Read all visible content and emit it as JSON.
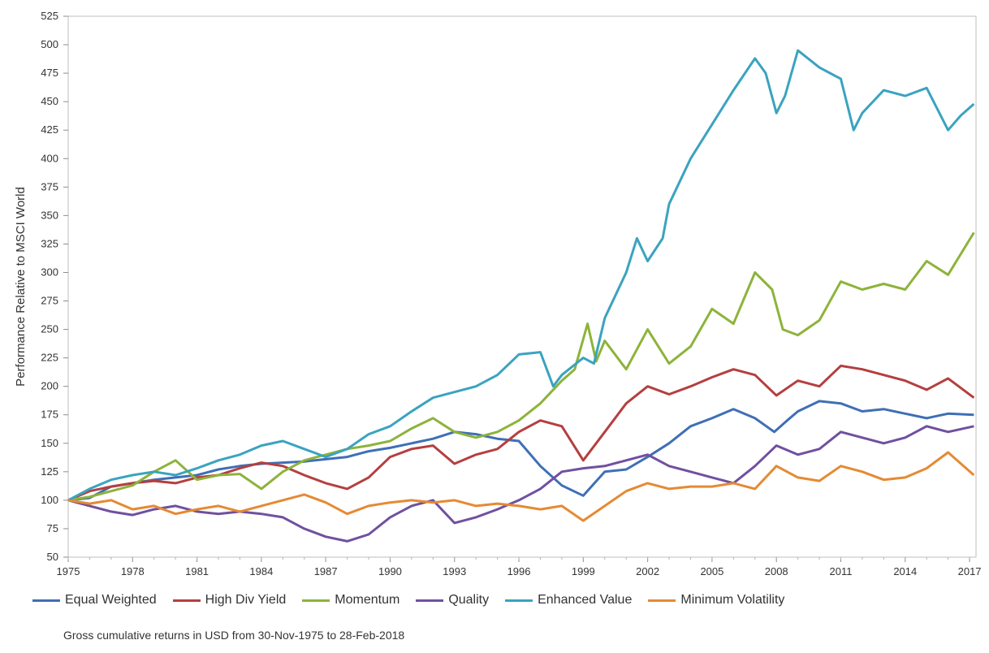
{
  "chart_data": {
    "type": "line",
    "ylabel": "Performance Relative to MSCI World",
    "xlabel": "",
    "xlim": [
      1975,
      2017.3
    ],
    "ylim": [
      50,
      525
    ],
    "y_ticks": [
      "50",
      "75",
      "100",
      "125",
      "150",
      "175",
      "200",
      "225",
      "250",
      "275",
      "300",
      "325",
      "350",
      "375",
      "400",
      "425",
      "450",
      "475",
      "500",
      "525"
    ],
    "x_ticks": [
      "1975",
      "1978",
      "1981",
      "1984",
      "1987",
      "1990",
      "1993",
      "1996",
      "1999",
      "2002",
      "2005",
      "2008",
      "2011",
      "2014",
      "2017"
    ],
    "grid": false,
    "legend_position": "bottom",
    "series": [
      {
        "name": "Equal Weighted",
        "color": "#3f6fb5",
        "points": [
          [
            1975,
            100
          ],
          [
            1976,
            102
          ],
          [
            1977,
            112
          ],
          [
            1978,
            115
          ],
          [
            1979,
            118
          ],
          [
            1980,
            120
          ],
          [
            1981,
            122
          ],
          [
            1982,
            127
          ],
          [
            1983,
            130
          ],
          [
            1984,
            132
          ],
          [
            1985,
            133
          ],
          [
            1986,
            134
          ],
          [
            1987,
            136
          ],
          [
            1988,
            138
          ],
          [
            1989,
            143
          ],
          [
            1990,
            146
          ],
          [
            1991,
            150
          ],
          [
            1992,
            154
          ],
          [
            1993,
            160
          ],
          [
            1994,
            158
          ],
          [
            1995,
            154
          ],
          [
            1996,
            152
          ],
          [
            1997,
            130
          ],
          [
            1998,
            113
          ],
          [
            1999,
            104
          ],
          [
            2000,
            125
          ],
          [
            2001,
            127
          ],
          [
            2002,
            138
          ],
          [
            2003,
            150
          ],
          [
            2004,
            165
          ],
          [
            2005,
            172
          ],
          [
            2006,
            180
          ],
          [
            2007,
            172
          ],
          [
            2007.9,
            160
          ],
          [
            2008.5,
            170
          ],
          [
            2009,
            178
          ],
          [
            2010,
            187
          ],
          [
            2011,
            185
          ],
          [
            2012,
            178
          ],
          [
            2013,
            180
          ],
          [
            2014,
            176
          ],
          [
            2015,
            172
          ],
          [
            2016,
            176
          ],
          [
            2017.2,
            175
          ]
        ]
      },
      {
        "name": "High Div Yield",
        "color": "#b53f3f",
        "points": [
          [
            1975,
            100
          ],
          [
            1976,
            108
          ],
          [
            1977,
            112
          ],
          [
            1978,
            115
          ],
          [
            1979,
            117
          ],
          [
            1980,
            115
          ],
          [
            1981,
            120
          ],
          [
            1982,
            122
          ],
          [
            1983,
            128
          ],
          [
            1984,
            133
          ],
          [
            1985,
            130
          ],
          [
            1986,
            122
          ],
          [
            1987,
            115
          ],
          [
            1988,
            110
          ],
          [
            1989,
            120
          ],
          [
            1990,
            138
          ],
          [
            1991,
            145
          ],
          [
            1992,
            148
          ],
          [
            1993,
            132
          ],
          [
            1994,
            140
          ],
          [
            1995,
            145
          ],
          [
            1996,
            160
          ],
          [
            1997,
            170
          ],
          [
            1998,
            165
          ],
          [
            1999,
            135
          ],
          [
            2000,
            160
          ],
          [
            2001,
            185
          ],
          [
            2002,
            200
          ],
          [
            2003,
            193
          ],
          [
            2004,
            200
          ],
          [
            2005,
            208
          ],
          [
            2006,
            215
          ],
          [
            2007,
            210
          ],
          [
            2008,
            192
          ],
          [
            2009,
            205
          ],
          [
            2010,
            200
          ],
          [
            2011,
            218
          ],
          [
            2012,
            215
          ],
          [
            2013,
            210
          ],
          [
            2014,
            205
          ],
          [
            2015,
            197
          ],
          [
            2016,
            207
          ],
          [
            2017.2,
            190
          ]
        ]
      },
      {
        "name": "Momentum",
        "color": "#8db33a",
        "points": [
          [
            1975,
            100
          ],
          [
            1976,
            103
          ],
          [
            1977,
            108
          ],
          [
            1978,
            113
          ],
          [
            1979,
            125
          ],
          [
            1980,
            135
          ],
          [
            1981,
            118
          ],
          [
            1982,
            122
          ],
          [
            1983,
            123
          ],
          [
            1984,
            110
          ],
          [
            1985,
            125
          ],
          [
            1986,
            135
          ],
          [
            1987,
            140
          ],
          [
            1988,
            145
          ],
          [
            1989,
            148
          ],
          [
            1990,
            152
          ],
          [
            1991,
            163
          ],
          [
            1992,
            172
          ],
          [
            1993,
            160
          ],
          [
            1994,
            155
          ],
          [
            1995,
            160
          ],
          [
            1996,
            170
          ],
          [
            1997,
            185
          ],
          [
            1998,
            205
          ],
          [
            1998.6,
            215
          ],
          [
            1999.2,
            255
          ],
          [
            1999.6,
            222
          ],
          [
            2000,
            240
          ],
          [
            2001,
            215
          ],
          [
            2002,
            250
          ],
          [
            2003,
            220
          ],
          [
            2004,
            235
          ],
          [
            2005,
            268
          ],
          [
            2006,
            255
          ],
          [
            2007,
            300
          ],
          [
            2007.8,
            285
          ],
          [
            2008.3,
            250
          ],
          [
            2009,
            245
          ],
          [
            2010,
            258
          ],
          [
            2011,
            292
          ],
          [
            2012,
            285
          ],
          [
            2013,
            290
          ],
          [
            2014,
            285
          ],
          [
            2015,
            310
          ],
          [
            2016,
            298
          ],
          [
            2017.2,
            335
          ]
        ]
      },
      {
        "name": "Quality",
        "color": "#7050a0",
        "points": [
          [
            1975,
            100
          ],
          [
            1976,
            95
          ],
          [
            1977,
            90
          ],
          [
            1978,
            87
          ],
          [
            1979,
            92
          ],
          [
            1980,
            95
          ],
          [
            1981,
            90
          ],
          [
            1982,
            88
          ],
          [
            1983,
            90
          ],
          [
            1984,
            88
          ],
          [
            1985,
            85
          ],
          [
            1986,
            75
          ],
          [
            1987,
            68
          ],
          [
            1988,
            64
          ],
          [
            1989,
            70
          ],
          [
            1990,
            85
          ],
          [
            1991,
            95
          ],
          [
            1992,
            100
          ],
          [
            1993,
            80
          ],
          [
            1994,
            85
          ],
          [
            1995,
            92
          ],
          [
            1996,
            100
          ],
          [
            1997,
            110
          ],
          [
            1998,
            125
          ],
          [
            1999,
            128
          ],
          [
            2000,
            130
          ],
          [
            2001,
            135
          ],
          [
            2002,
            140
          ],
          [
            2003,
            130
          ],
          [
            2004,
            125
          ],
          [
            2005,
            120
          ],
          [
            2006,
            115
          ],
          [
            2007,
            130
          ],
          [
            2008,
            148
          ],
          [
            2009,
            140
          ],
          [
            2010,
            145
          ],
          [
            2011,
            160
          ],
          [
            2012,
            155
          ],
          [
            2013,
            150
          ],
          [
            2014,
            155
          ],
          [
            2015,
            165
          ],
          [
            2016,
            160
          ],
          [
            2017.2,
            165
          ]
        ]
      },
      {
        "name": "Enhanced Value",
        "color": "#3aa3c0",
        "points": [
          [
            1975,
            100
          ],
          [
            1976,
            110
          ],
          [
            1977,
            118
          ],
          [
            1978,
            122
          ],
          [
            1979,
            125
          ],
          [
            1980,
            122
          ],
          [
            1981,
            128
          ],
          [
            1982,
            135
          ],
          [
            1983,
            140
          ],
          [
            1984,
            148
          ],
          [
            1985,
            152
          ],
          [
            1986,
            145
          ],
          [
            1987,
            138
          ],
          [
            1988,
            145
          ],
          [
            1989,
            158
          ],
          [
            1990,
            165
          ],
          [
            1991,
            178
          ],
          [
            1992,
            190
          ],
          [
            1993,
            195
          ],
          [
            1994,
            200
          ],
          [
            1995,
            210
          ],
          [
            1996,
            228
          ],
          [
            1997,
            230
          ],
          [
            1997.6,
            200
          ],
          [
            1998,
            210
          ],
          [
            1999,
            225
          ],
          [
            1999.5,
            220
          ],
          [
            2000,
            260
          ],
          [
            2001,
            300
          ],
          [
            2001.5,
            330
          ],
          [
            2002,
            310
          ],
          [
            2002.7,
            330
          ],
          [
            2003,
            360
          ],
          [
            2004,
            400
          ],
          [
            2005,
            430
          ],
          [
            2006,
            460
          ],
          [
            2007,
            488
          ],
          [
            2007.5,
            475
          ],
          [
            2008,
            440
          ],
          [
            2008.4,
            455
          ],
          [
            2009,
            495
          ],
          [
            2010,
            480
          ],
          [
            2011,
            470
          ],
          [
            2011.6,
            425
          ],
          [
            2012,
            440
          ],
          [
            2013,
            460
          ],
          [
            2014,
            455
          ],
          [
            2015,
            462
          ],
          [
            2016,
            425
          ],
          [
            2016.6,
            438
          ],
          [
            2017.2,
            448
          ]
        ]
      },
      {
        "name": "Minimum Volatility",
        "color": "#e58a33",
        "points": [
          [
            1975,
            100
          ],
          [
            1976,
            97
          ],
          [
            1977,
            100
          ],
          [
            1978,
            92
          ],
          [
            1979,
            95
          ],
          [
            1980,
            88
          ],
          [
            1981,
            92
          ],
          [
            1982,
            95
          ],
          [
            1983,
            90
          ],
          [
            1984,
            95
          ],
          [
            1985,
            100
          ],
          [
            1986,
            105
          ],
          [
            1987,
            98
          ],
          [
            1988,
            88
          ],
          [
            1989,
            95
          ],
          [
            1990,
            98
          ],
          [
            1991,
            100
          ],
          [
            1992,
            98
          ],
          [
            1993,
            100
          ],
          [
            1994,
            95
          ],
          [
            1995,
            97
          ],
          [
            1996,
            95
          ],
          [
            1997,
            92
          ],
          [
            1998,
            95
          ],
          [
            1999,
            82
          ],
          [
            2000,
            95
          ],
          [
            2001,
            108
          ],
          [
            2002,
            115
          ],
          [
            2003,
            110
          ],
          [
            2004,
            112
          ],
          [
            2005,
            112
          ],
          [
            2006,
            115
          ],
          [
            2007,
            110
          ],
          [
            2008,
            130
          ],
          [
            2009,
            120
          ],
          [
            2010,
            117
          ],
          [
            2011,
            130
          ],
          [
            2012,
            125
          ],
          [
            2013,
            118
          ],
          [
            2014,
            120
          ],
          [
            2015,
            128
          ],
          [
            2016,
            142
          ],
          [
            2017.2,
            122
          ]
        ]
      }
    ]
  },
  "caption": "Gross cumulative returns in USD from 30-Nov-1975 to 28-Feb-2018"
}
